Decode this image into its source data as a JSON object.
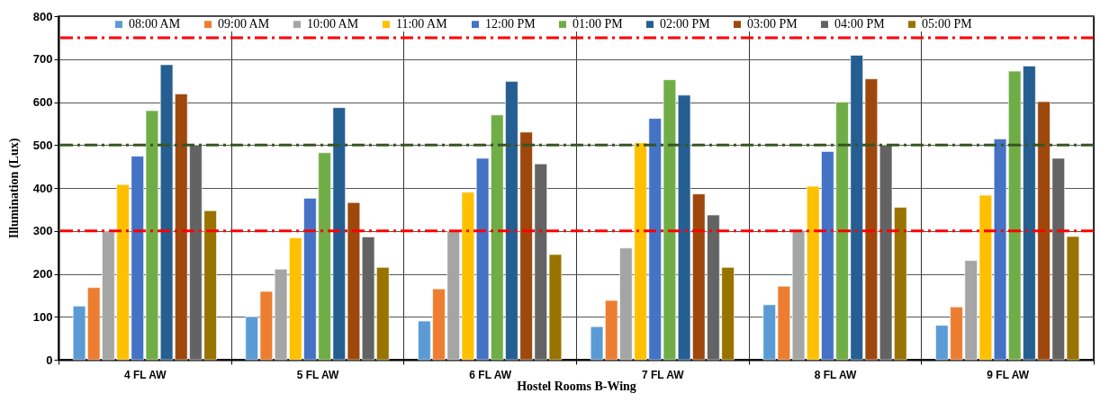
{
  "chart_data": {
    "type": "bar",
    "xlabel": "Hostel Rooms  B-Wing",
    "ylabel": "Illumination (Lux)",
    "categories": [
      "4 FL AW",
      "5 FL AW",
      "6 FL AW",
      "7 FL AW",
      "8 FL AW",
      "9 FL AW"
    ],
    "series": [
      {
        "name": "08:00 AM",
        "color": "#5b9bd5",
        "values": [
          125,
          100,
          90,
          77,
          128,
          80
        ]
      },
      {
        "name": "09:00 AM",
        "color": "#ed7d31",
        "values": [
          168,
          159,
          165,
          138,
          171,
          123
        ]
      },
      {
        "name": "10:00 AM",
        "color": "#a5a5a5",
        "values": [
          298,
          211,
          300,
          260,
          302,
          231
        ]
      },
      {
        "name": "11:00 AM",
        "color": "#ffc000",
        "values": [
          408,
          284,
          390,
          505,
          404,
          383
        ]
      },
      {
        "name": "12:00 PM",
        "color": "#4472c4",
        "values": [
          474,
          376,
          469,
          562,
          485,
          514
        ]
      },
      {
        "name": "01:00 PM",
        "color": "#70ad47",
        "values": [
          580,
          482,
          570,
          652,
          600,
          672
        ]
      },
      {
        "name": "02:00 PM",
        "color": "#255e91",
        "values": [
          687,
          587,
          648,
          616,
          709,
          684
        ]
      },
      {
        "name": "03:00 PM",
        "color": "#9e480e",
        "values": [
          619,
          366,
          530,
          386,
          654,
          601
        ]
      },
      {
        "name": "04:00 PM",
        "color": "#636363",
        "values": [
          500,
          286,
          456,
          337,
          500,
          469
        ]
      },
      {
        "name": "05:00 PM",
        "color": "#997300",
        "values": [
          347,
          215,
          245,
          215,
          355,
          287
        ]
      }
    ],
    "ylim": [
      0,
      800
    ],
    "yticks": [
      0,
      100,
      200,
      300,
      400,
      500,
      600,
      700,
      800
    ],
    "ref_lines": [
      {
        "axis": "y",
        "value": 750,
        "color": "#ff0000",
        "line_style": "dashed"
      },
      {
        "axis": "y",
        "value": 500,
        "color": "#375623",
        "line_style": "dashed"
      },
      {
        "axis": "y",
        "value": 300,
        "color": "#ff0000",
        "line_style": "dashed"
      }
    ],
    "grid": true,
    "legend": "top"
  }
}
